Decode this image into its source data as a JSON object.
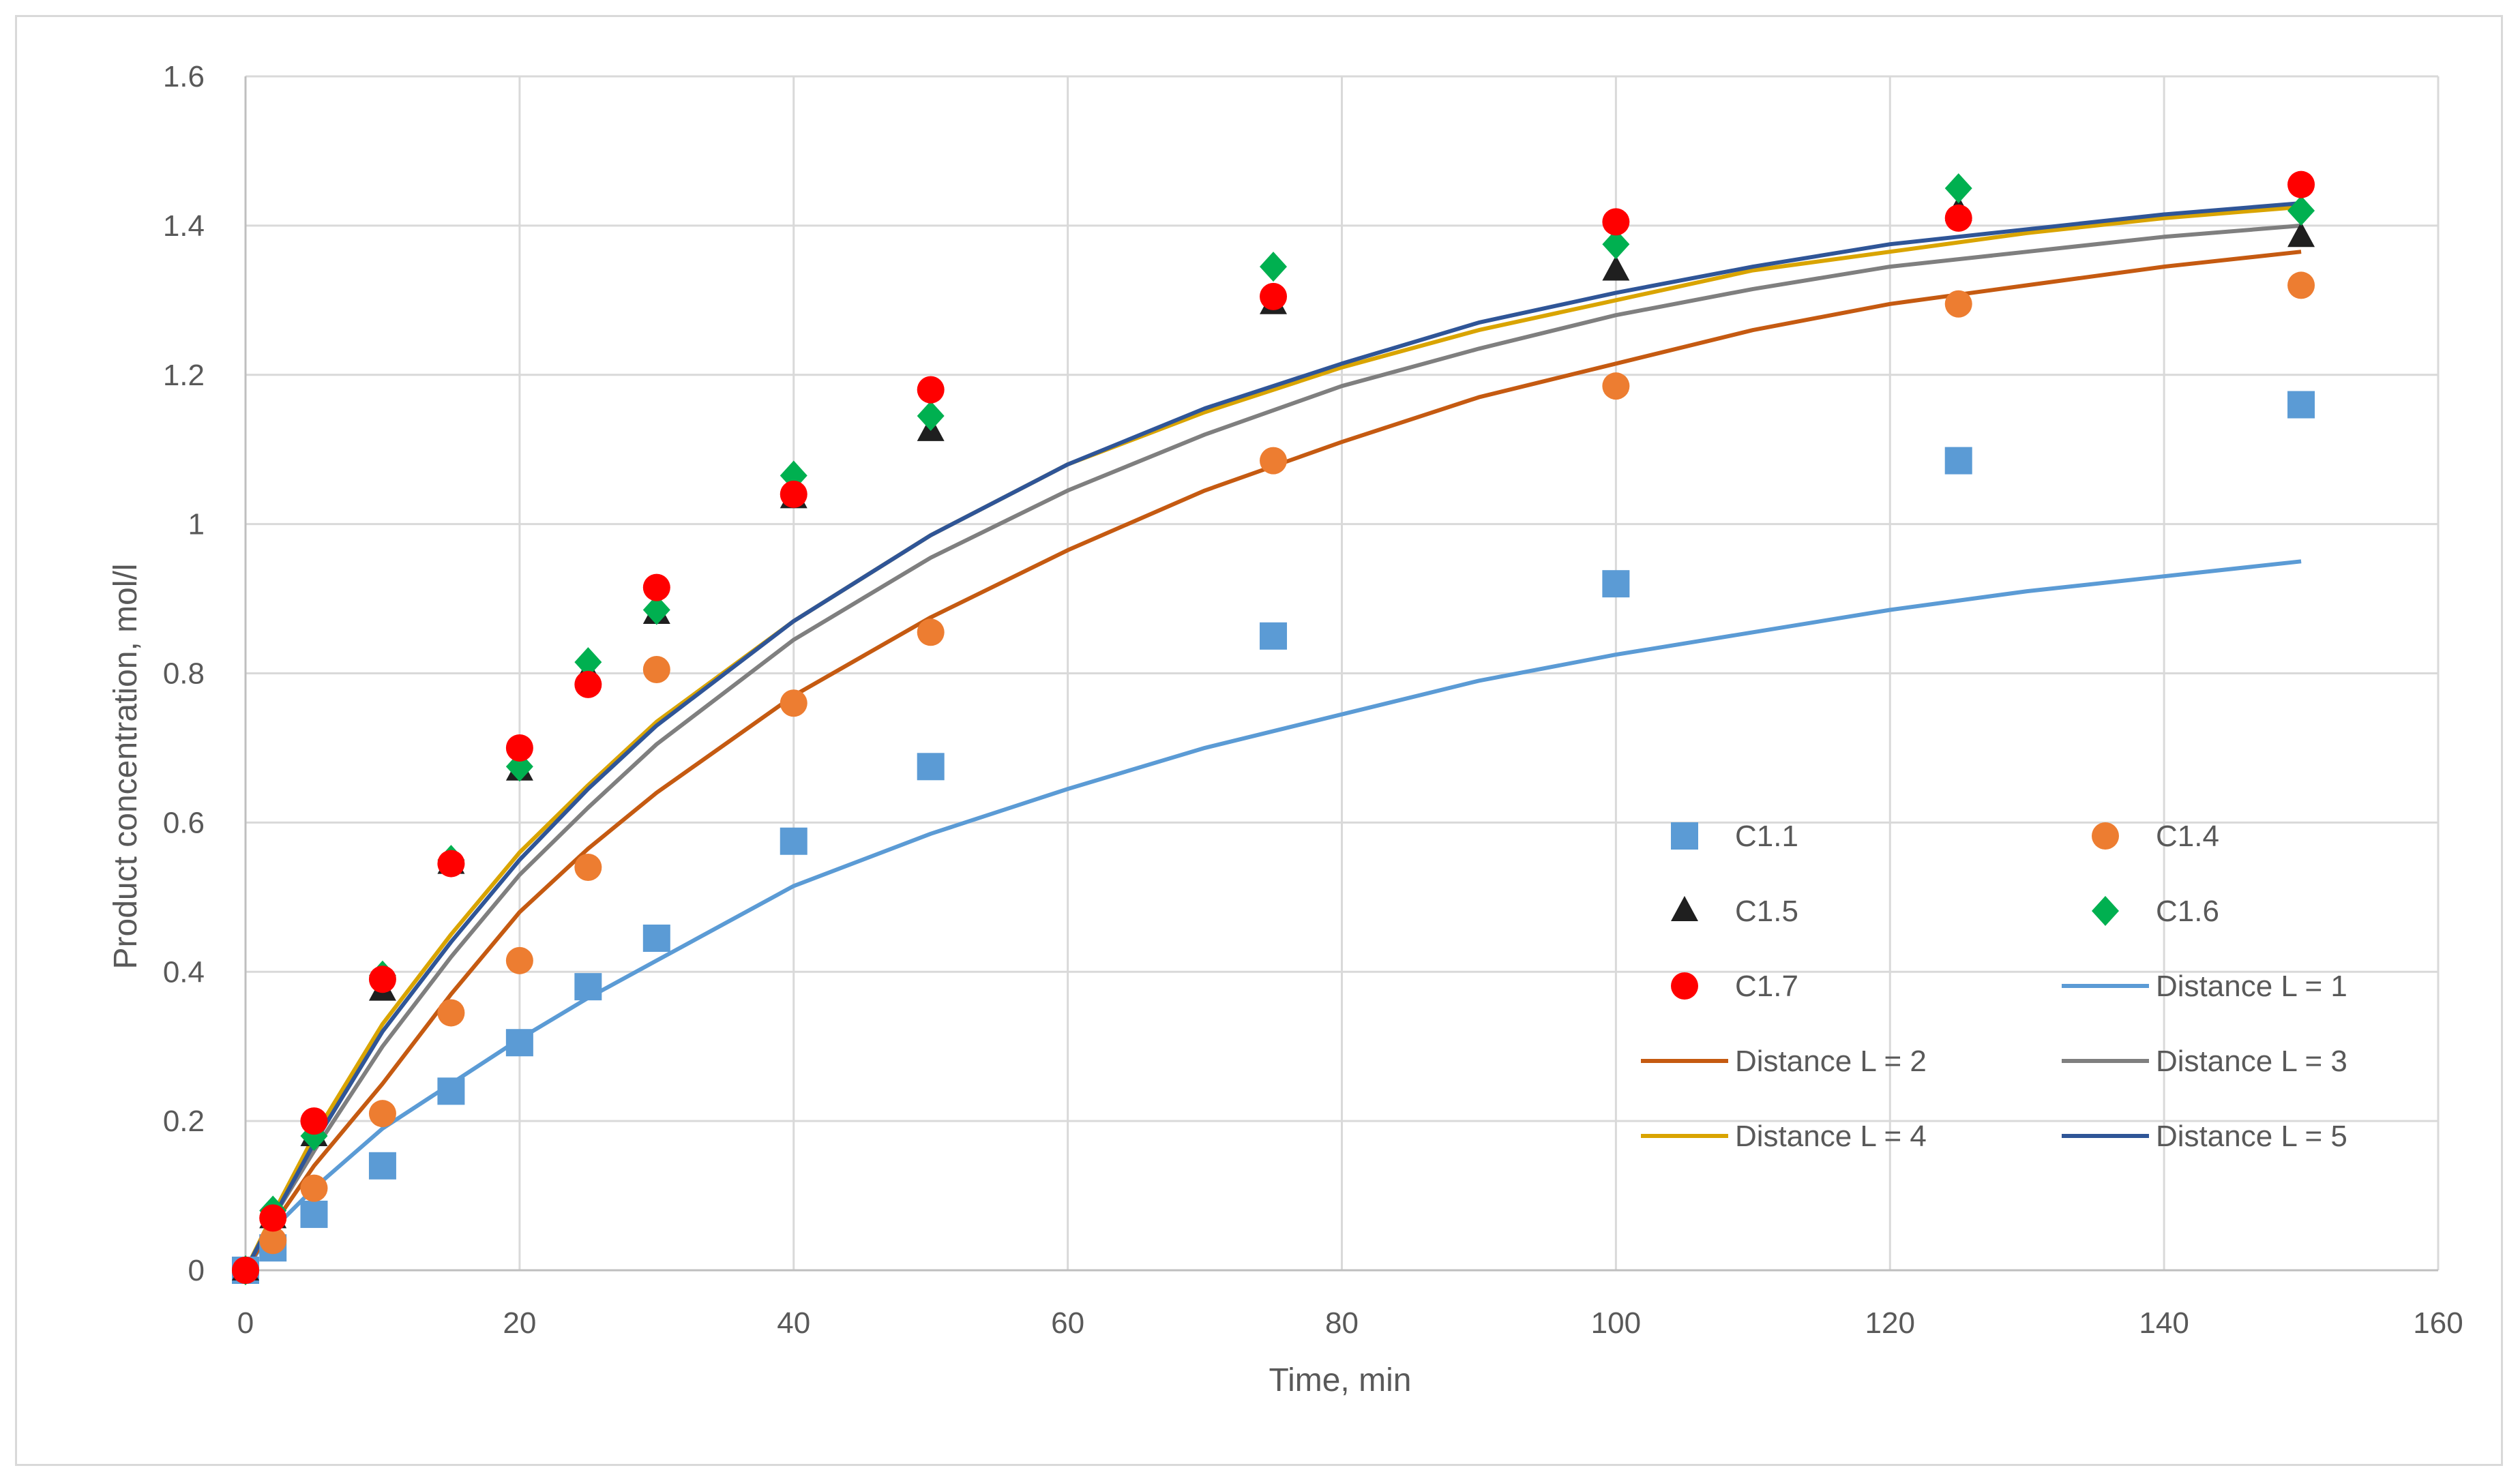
{
  "chart_data": {
    "type": "scatter",
    "title": "",
    "xlabel": "Time, min",
    "ylabel": "Product concentration, mol/l",
    "xlim": [
      0,
      160
    ],
    "ylim": [
      0,
      1.6
    ],
    "x_ticks": [
      0,
      20,
      40,
      60,
      80,
      100,
      120,
      140,
      160
    ],
    "y_ticks": [
      0,
      0.2,
      0.4,
      0.6,
      0.8,
      1,
      1.2,
      1.4,
      1.6
    ],
    "x_tick_labels": [
      "0",
      "20",
      "40",
      "60",
      "80",
      "100",
      "120",
      "140",
      "160"
    ],
    "y_tick_labels": [
      "0",
      "0.2",
      "0.4",
      "0.6",
      "0.8",
      "1",
      "1.2",
      "1.4",
      "1.6"
    ],
    "grid": true,
    "legend_position": "bottom-right inside plot",
    "scatter_series": [
      {
        "name": "C1.1",
        "marker": "square",
        "color": "#5b9bd5",
        "points": [
          [
            0,
            0
          ],
          [
            2,
            0.03
          ],
          [
            5,
            0.075
          ],
          [
            10,
            0.14
          ],
          [
            15,
            0.24
          ],
          [
            20,
            0.305
          ],
          [
            25,
            0.38
          ],
          [
            30,
            0.445
          ],
          [
            40,
            0.575
          ],
          [
            50,
            0.675
          ],
          [
            75,
            0.85
          ],
          [
            100,
            0.92
          ],
          [
            125,
            1.085
          ],
          [
            150,
            1.16
          ]
        ]
      },
      {
        "name": "C1.4",
        "marker": "circle",
        "color": "#ed7d31",
        "points": [
          [
            0,
            0
          ],
          [
            2,
            0.04
          ],
          [
            5,
            0.11
          ],
          [
            10,
            0.21
          ],
          [
            15,
            0.345
          ],
          [
            20,
            0.415
          ],
          [
            25,
            0.54
          ],
          [
            30,
            0.805
          ],
          [
            40,
            0.76
          ],
          [
            50,
            0.855
          ],
          [
            75,
            1.085
          ],
          [
            100,
            1.185
          ],
          [
            125,
            1.295
          ],
          [
            150,
            1.32
          ]
        ]
      },
      {
        "name": "C1.5",
        "marker": "triangle",
        "color": "#1f1f1f",
        "points": [
          [
            0,
            0
          ],
          [
            2,
            0.07
          ],
          [
            5,
            0.18
          ],
          [
            10,
            0.375
          ],
          [
            15,
            0.545
          ],
          [
            20,
            0.67
          ],
          [
            25,
            0.8
          ],
          [
            30,
            0.88
          ],
          [
            40,
            1.035
          ],
          [
            50,
            1.125
          ],
          [
            75,
            1.295
          ],
          [
            100,
            1.34
          ],
          [
            125,
            1.42
          ],
          [
            150,
            1.385
          ]
        ]
      },
      {
        "name": "C1.6",
        "marker": "diamond",
        "color": "#00b050",
        "points": [
          [
            0,
            0
          ],
          [
            2,
            0.08
          ],
          [
            5,
            0.18
          ],
          [
            10,
            0.395
          ],
          [
            15,
            0.55
          ],
          [
            20,
            0.675
          ],
          [
            25,
            0.815
          ],
          [
            30,
            0.885
          ],
          [
            40,
            1.065
          ],
          [
            50,
            1.145
          ],
          [
            75,
            1.345
          ],
          [
            100,
            1.375
          ],
          [
            125,
            1.45
          ],
          [
            150,
            1.42
          ]
        ]
      },
      {
        "name": "C1.7",
        "marker": "circle",
        "color": "#ff0000",
        "points": [
          [
            0,
            0
          ],
          [
            2,
            0.07
          ],
          [
            5,
            0.2
          ],
          [
            10,
            0.39
          ],
          [
            15,
            0.545
          ],
          [
            20,
            0.7
          ],
          [
            25,
            0.785
          ],
          [
            30,
            0.915
          ],
          [
            40,
            1.04
          ],
          [
            50,
            1.18
          ],
          [
            75,
            1.305
          ],
          [
            100,
            1.405
          ],
          [
            125,
            1.41
          ],
          [
            150,
            1.455
          ]
        ]
      }
    ],
    "line_series": [
      {
        "name": "Distance L = 1",
        "color": "#5b9bd5",
        "points": [
          [
            0,
            0
          ],
          [
            2,
            0.055
          ],
          [
            5,
            0.11
          ],
          [
            10,
            0.19
          ],
          [
            15,
            0.25
          ],
          [
            20,
            0.31
          ],
          [
            25,
            0.365
          ],
          [
            30,
            0.415
          ],
          [
            40,
            0.515
          ],
          [
            50,
            0.585
          ],
          [
            60,
            0.645
          ],
          [
            70,
            0.7
          ],
          [
            80,
            0.745
          ],
          [
            90,
            0.79
          ],
          [
            100,
            0.825
          ],
          [
            110,
            0.855
          ],
          [
            120,
            0.885
          ],
          [
            130,
            0.91
          ],
          [
            140,
            0.93
          ],
          [
            150,
            0.95
          ]
        ]
      },
      {
        "name": "Distance L = 2",
        "color": "#c55a11",
        "points": [
          [
            0,
            0
          ],
          [
            2,
            0.06
          ],
          [
            5,
            0.14
          ],
          [
            10,
            0.25
          ],
          [
            15,
            0.37
          ],
          [
            20,
            0.48
          ],
          [
            25,
            0.565
          ],
          [
            30,
            0.64
          ],
          [
            40,
            0.77
          ],
          [
            50,
            0.875
          ],
          [
            60,
            0.965
          ],
          [
            70,
            1.045
          ],
          [
            80,
            1.11
          ],
          [
            90,
            1.17
          ],
          [
            100,
            1.215
          ],
          [
            110,
            1.26
          ],
          [
            120,
            1.295
          ],
          [
            130,
            1.32
          ],
          [
            140,
            1.345
          ],
          [
            150,
            1.365
          ]
        ]
      },
      {
        "name": "Distance L = 3",
        "color": "#7f7f7f",
        "points": [
          [
            0,
            0
          ],
          [
            2,
            0.07
          ],
          [
            5,
            0.16
          ],
          [
            10,
            0.3
          ],
          [
            15,
            0.42
          ],
          [
            20,
            0.53
          ],
          [
            25,
            0.62
          ],
          [
            30,
            0.705
          ],
          [
            40,
            0.845
          ],
          [
            50,
            0.955
          ],
          [
            60,
            1.045
          ],
          [
            70,
            1.12
          ],
          [
            80,
            1.185
          ],
          [
            90,
            1.235
          ],
          [
            100,
            1.28
          ],
          [
            110,
            1.315
          ],
          [
            120,
            1.345
          ],
          [
            130,
            1.365
          ],
          [
            140,
            1.385
          ],
          [
            150,
            1.4
          ]
        ]
      },
      {
        "name": "Distance L = 4",
        "color": "#d9a400",
        "points": [
          [
            0,
            0
          ],
          [
            2,
            0.075
          ],
          [
            5,
            0.18
          ],
          [
            10,
            0.33
          ],
          [
            15,
            0.45
          ],
          [
            20,
            0.56
          ],
          [
            25,
            0.65
          ],
          [
            30,
            0.735
          ],
          [
            40,
            0.87
          ],
          [
            50,
            0.985
          ],
          [
            60,
            1.08
          ],
          [
            70,
            1.15
          ],
          [
            80,
            1.21
          ],
          [
            90,
            1.26
          ],
          [
            100,
            1.3
          ],
          [
            110,
            1.34
          ],
          [
            120,
            1.365
          ],
          [
            130,
            1.39
          ],
          [
            140,
            1.41
          ],
          [
            150,
            1.425
          ]
        ]
      },
      {
        "name": "Distance L = 5",
        "color": "#2f5597",
        "points": [
          [
            0,
            0
          ],
          [
            2,
            0.07
          ],
          [
            5,
            0.17
          ],
          [
            10,
            0.32
          ],
          [
            15,
            0.44
          ],
          [
            20,
            0.55
          ],
          [
            25,
            0.645
          ],
          [
            30,
            0.73
          ],
          [
            40,
            0.87
          ],
          [
            50,
            0.985
          ],
          [
            60,
            1.08
          ],
          [
            70,
            1.155
          ],
          [
            80,
            1.215
          ],
          [
            90,
            1.27
          ],
          [
            100,
            1.31
          ],
          [
            110,
            1.345
          ],
          [
            120,
            1.375
          ],
          [
            130,
            1.395
          ],
          [
            140,
            1.415
          ],
          [
            150,
            1.43
          ]
        ]
      }
    ]
  }
}
